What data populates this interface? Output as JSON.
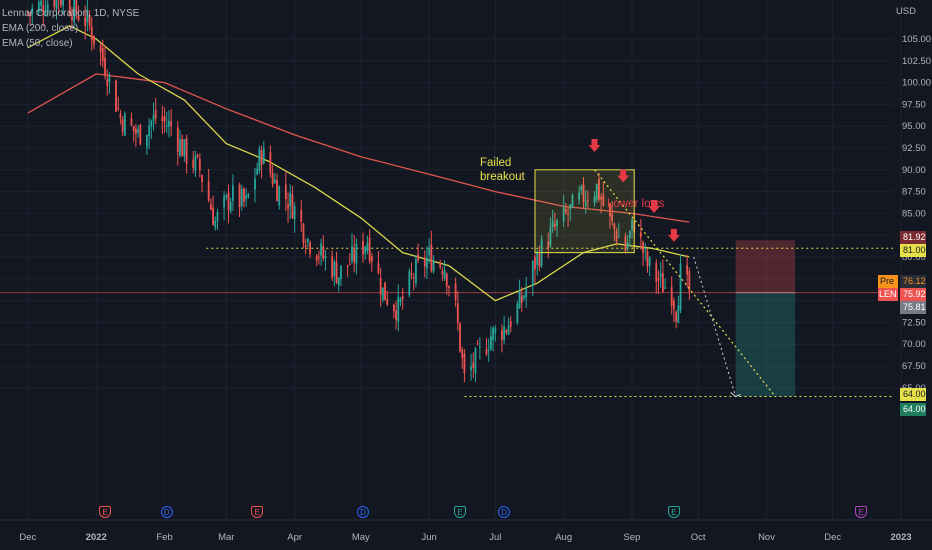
{
  "legend": {
    "title": "Lennar Corporation, 1D, NYSE",
    "ema200": "EMA (200, close)",
    "ema50": "EMA (50, close)"
  },
  "currency": "USD",
  "annotations": {
    "failed_breakout": [
      "Failed",
      "breakout"
    ],
    "lower_lows": "Lower lows"
  },
  "price_tags": {
    "stop": "81.92",
    "resistance": "81.00",
    "pre_label": "Pre",
    "pre_value": "76.12",
    "symbol_label": "LEN",
    "last_value": "75.92",
    "close_value": "75.81",
    "support": "64.00",
    "target": "64.00"
  },
  "events": [
    {
      "type": "E",
      "date": "2022-01-05"
    },
    {
      "type": "D",
      "date": "2022-02-02"
    },
    {
      "type": "E",
      "date": "2022-03-15"
    },
    {
      "type": "D",
      "date": "2022-05-02"
    },
    {
      "type": "E",
      "date": "2022-06-15"
    },
    {
      "type": "D",
      "date": "2022-07-05"
    },
    {
      "type": "E",
      "date": "2022-09-20"
    },
    {
      "type": "E",
      "date": "2022-12-14"
    }
  ],
  "colors": {
    "background": "#131722",
    "up": "#26a69a",
    "down": "#ef5350",
    "ema50": "#d9d74a",
    "ema200": "#e0574f",
    "annotation_yellow": "#e6e14a",
    "annotation_red": "#e53945",
    "dividend": "#2962ff",
    "earnings_badge": "#ef5350",
    "earnings_badge_green": "#26a69a",
    "future_earnings": "#ab47bc"
  },
  "chart_data": {
    "type": "candlestick",
    "symbol": "LEN",
    "interval": "1D",
    "exchange": "NYSE",
    "x_ticks": [
      "Dec",
      "2022",
      "Feb",
      "Mar",
      "Apr",
      "May",
      "Jun",
      "Jul",
      "Aug",
      "Sep",
      "Oct",
      "Nov",
      "Dec",
      "2023"
    ],
    "y_ticks": [
      "105.00",
      "102.50",
      "100.00",
      "97.50",
      "95.00",
      "92.50",
      "90.00",
      "87.50",
      "85.00",
      "82.50",
      "80.00",
      "77.50",
      "75.00",
      "72.50",
      "70.00",
      "67.50",
      "65.00"
    ],
    "ylim": [
      62.5,
      109
    ],
    "price_path": [
      {
        "date": "2021-12-01",
        "close": 108
      },
      {
        "date": "2021-12-15",
        "close": 110
      },
      {
        "date": "2021-12-28",
        "close": 107
      },
      {
        "date": "2022-01-05",
        "close": 102
      },
      {
        "date": "2022-01-12",
        "close": 96
      },
      {
        "date": "2022-01-20",
        "close": 94
      },
      {
        "date": "2022-01-28",
        "close": 96
      },
      {
        "date": "2022-02-04",
        "close": 95
      },
      {
        "date": "2022-02-10",
        "close": 92
      },
      {
        "date": "2022-02-17",
        "close": 90
      },
      {
        "date": "2022-02-24",
        "close": 84
      },
      {
        "date": "2022-03-03",
        "close": 87
      },
      {
        "date": "2022-03-10",
        "close": 86
      },
      {
        "date": "2022-03-17",
        "close": 92
      },
      {
        "date": "2022-03-24",
        "close": 88
      },
      {
        "date": "2022-03-31",
        "close": 86
      },
      {
        "date": "2022-04-07",
        "close": 82
      },
      {
        "date": "2022-04-14",
        "close": 80
      },
      {
        "date": "2022-04-21",
        "close": 78
      },
      {
        "date": "2022-04-28",
        "close": 80
      },
      {
        "date": "2022-05-04",
        "close": 82
      },
      {
        "date": "2022-05-11",
        "close": 76
      },
      {
        "date": "2022-05-18",
        "close": 74
      },
      {
        "date": "2022-05-25",
        "close": 78
      },
      {
        "date": "2022-06-01",
        "close": 80
      },
      {
        "date": "2022-06-08",
        "close": 79
      },
      {
        "date": "2022-06-13",
        "close": 74
      },
      {
        "date": "2022-06-17",
        "close": 66
      },
      {
        "date": "2022-06-22",
        "close": 68
      },
      {
        "date": "2022-06-29",
        "close": 71
      },
      {
        "date": "2022-07-06",
        "close": 72
      },
      {
        "date": "2022-07-13",
        "close": 75
      },
      {
        "date": "2022-07-20",
        "close": 80
      },
      {
        "date": "2022-07-27",
        "close": 83
      },
      {
        "date": "2022-08-03",
        "close": 85
      },
      {
        "date": "2022-08-10",
        "close": 87
      },
      {
        "date": "2022-08-16",
        "close": 88
      },
      {
        "date": "2022-08-22",
        "close": 84
      },
      {
        "date": "2022-08-29",
        "close": 81
      },
      {
        "date": "2022-09-02",
        "close": 84
      },
      {
        "date": "2022-09-08",
        "close": 79
      },
      {
        "date": "2022-09-14",
        "close": 77
      },
      {
        "date": "2022-09-19",
        "close": 76
      },
      {
        "date": "2022-09-21",
        "close": 74
      },
      {
        "date": "2022-09-23",
        "close": 78
      },
      {
        "date": "2022-09-27",
        "close": 75.92
      }
    ],
    "ema50": [
      {
        "date": "2021-12-01",
        "value": 104
      },
      {
        "date": "2021-12-20",
        "value": 106.5
      },
      {
        "date": "2022-01-01",
        "value": 105
      },
      {
        "date": "2022-01-20",
        "value": 101
      },
      {
        "date": "2022-02-10",
        "value": 98
      },
      {
        "date": "2022-03-01",
        "value": 93
      },
      {
        "date": "2022-03-20",
        "value": 91
      },
      {
        "date": "2022-04-10",
        "value": 88
      },
      {
        "date": "2022-05-01",
        "value": 84.5
      },
      {
        "date": "2022-05-20",
        "value": 80.5
      },
      {
        "date": "2022-06-10",
        "value": 79
      },
      {
        "date": "2022-07-01",
        "value": 75
      },
      {
        "date": "2022-07-20",
        "value": 77
      },
      {
        "date": "2022-08-10",
        "value": 80.5
      },
      {
        "date": "2022-08-25",
        "value": 81.5
      },
      {
        "date": "2022-09-10",
        "value": 81
      },
      {
        "date": "2022-09-27",
        "value": 80
      }
    ],
    "ema200": [
      {
        "date": "2021-12-01",
        "value": 96.5
      },
      {
        "date": "2022-01-01",
        "value": 101
      },
      {
        "date": "2022-02-01",
        "value": 100
      },
      {
        "date": "2022-03-01",
        "value": 97
      },
      {
        "date": "2022-04-01",
        "value": 94
      },
      {
        "date": "2022-05-01",
        "value": 91.5
      },
      {
        "date": "2022-06-01",
        "value": 89.5
      },
      {
        "date": "2022-07-01",
        "value": 87.5
      },
      {
        "date": "2022-08-01",
        "value": 85.8
      },
      {
        "date": "2022-09-01",
        "value": 85
      },
      {
        "date": "2022-09-27",
        "value": 84
      }
    ],
    "levels": {
      "resistance": 81.0,
      "support": 64.0,
      "stop": 81.92,
      "last": 75.92,
      "pre": 76.12
    },
    "failed_breakout_box": {
      "start": "2022-07-19",
      "end": "2022-09-02",
      "low": 80.5,
      "high": 90
    },
    "trendline": {
      "start": {
        "date": "2022-08-15",
        "value": 90
      },
      "end": {
        "date": "2022-11-05",
        "value": 64
      }
    },
    "projection": {
      "start": {
        "date": "2022-09-29",
        "value": 80
      },
      "end": {
        "date": "2022-10-18",
        "value": 64
      }
    },
    "position": {
      "start": "2022-10-18",
      "end": "2022-11-14",
      "entry": 75.92,
      "stop": 81.92,
      "target": 64.0
    },
    "arrows": [
      {
        "date": "2022-08-15",
        "value": 92.5
      },
      {
        "date": "2022-08-28",
        "value": 89
      },
      {
        "date": "2022-09-11",
        "value": 85.5
      },
      {
        "date": "2022-09-20",
        "value": 82.2
      }
    ]
  }
}
